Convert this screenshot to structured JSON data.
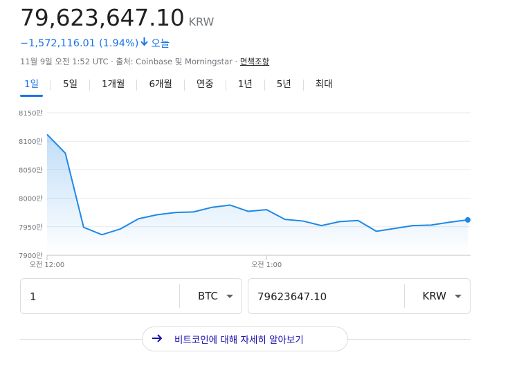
{
  "price": {
    "value": "79,623,647.10",
    "currency": "KRW"
  },
  "change": {
    "amount": "−1,572,116.01",
    "percent": "(1.94%)",
    "direction_icon": "arrow-down-icon",
    "period": "오늘"
  },
  "meta": {
    "timestamp": "11월 9일 오전 1:52 UTC",
    "sep1": " · ",
    "source": "출처: Coinbase 및 Morningstar",
    "sep2": " · ",
    "disclaimer": "면책조항"
  },
  "tabs": [
    {
      "label": "1일",
      "active": true
    },
    {
      "label": "5일"
    },
    {
      "label": "1개월"
    },
    {
      "label": "6개월"
    },
    {
      "label": "연중"
    },
    {
      "label": "1년"
    },
    {
      "label": "5년"
    },
    {
      "label": "최대"
    }
  ],
  "converter": {
    "from": {
      "amount": "1",
      "unit": "BTC"
    },
    "to": {
      "amount": "79623647.10",
      "unit": "KRW"
    }
  },
  "learn_more": {
    "label": "비트코인에 대해 자세히 알아보기",
    "icon": "arrow-right-icon"
  },
  "colors": {
    "accent": "#1a73e8",
    "line": "#1e88e5",
    "link": "#1a0dab"
  },
  "chart_data": {
    "type": "area",
    "x": [
      "00:00",
      "00:05",
      "00:10",
      "00:15",
      "00:20",
      "00:25",
      "00:30",
      "00:35",
      "00:40",
      "00:45",
      "00:50",
      "00:55",
      "01:00",
      "01:05",
      "01:10",
      "01:15",
      "01:20",
      "01:25",
      "01:30",
      "01:35",
      "01:40",
      "01:45",
      "01:50",
      "01:52"
    ],
    "values": [
      8112,
      8079,
      7949,
      7936,
      7946,
      7964,
      7971,
      7975,
      7976,
      7984,
      7988,
      7977,
      7980,
      7963,
      7960,
      7952,
      7959,
      7961,
      7942,
      7947,
      7952,
      7953,
      7958,
      7962
    ],
    "ylim": [
      7900,
      8150
    ],
    "y_ticks": [
      {
        "value": 8150,
        "label": "8150만"
      },
      {
        "value": 8100,
        "label": "8100만"
      },
      {
        "value": 8050,
        "label": "8050만"
      },
      {
        "value": 8000,
        "label": "8000만"
      },
      {
        "value": 7950,
        "label": "7950만"
      },
      {
        "value": 7900,
        "label": "7900만"
      }
    ],
    "x_ticks": [
      {
        "label": "오전 12:00",
        "index": 0
      },
      {
        "label": "오전 1:00",
        "index": 12
      }
    ],
    "grid": true
  }
}
